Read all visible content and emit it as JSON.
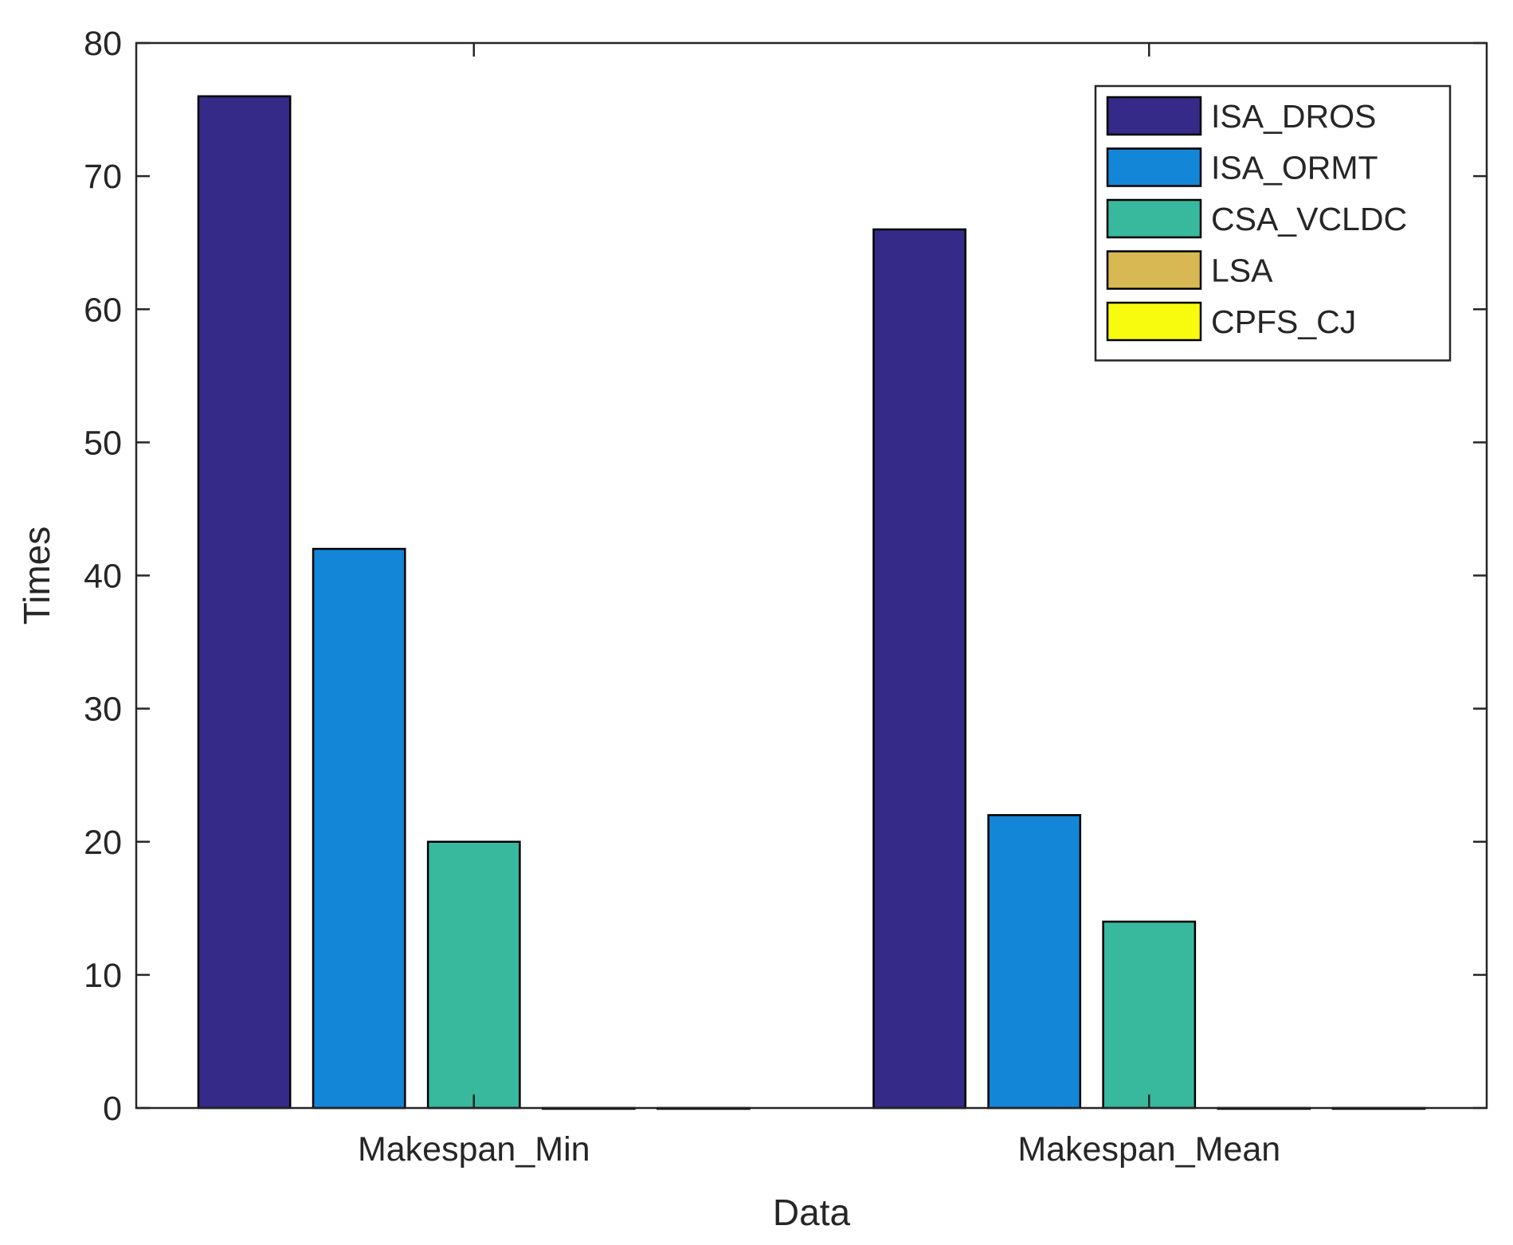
{
  "chart_data": {
    "type": "bar",
    "title": "",
    "xlabel": "Data",
    "ylabel": "Times",
    "categories": [
      "Makespan_Min",
      "Makespan_Mean"
    ],
    "ylim": [
      0,
      80
    ],
    "yticks": [
      0,
      10,
      20,
      30,
      40,
      50,
      60,
      70,
      80
    ],
    "grid": false,
    "legend_position": "top-right",
    "series": [
      {
        "name": "ISA_DROS",
        "color": "#352a87",
        "values": [
          76,
          66
        ]
      },
      {
        "name": "ISA_ORMT",
        "color": "#1486d8",
        "values": [
          42,
          22
        ]
      },
      {
        "name": "CSA_VCLDC",
        "color": "#38b89d",
        "values": [
          20,
          14
        ]
      },
      {
        "name": "LSA",
        "color": "#d7b853",
        "values": [
          0,
          0
        ]
      },
      {
        "name": "CPFS_CJ",
        "color": "#f9fb0e",
        "values": [
          0,
          0
        ]
      }
    ]
  }
}
